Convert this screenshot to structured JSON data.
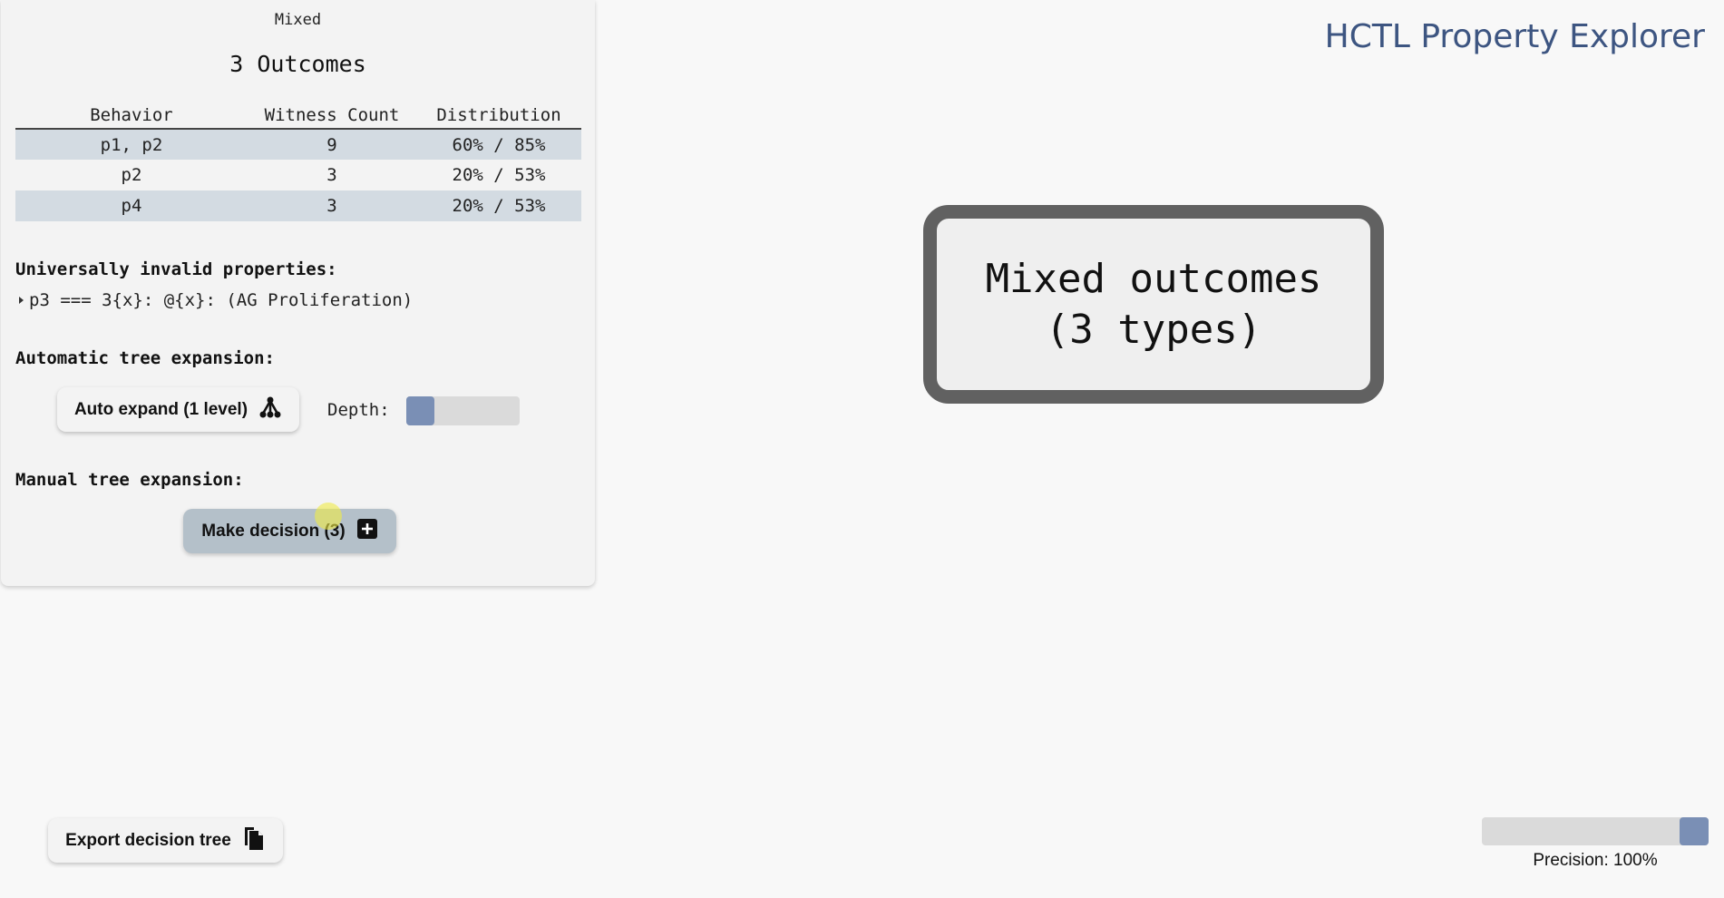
{
  "app": {
    "title": "HCTL Property Explorer"
  },
  "panel": {
    "type_label": "Mixed",
    "title": "3 Outcomes",
    "table": {
      "headers": [
        "Behavior",
        "Witness Count",
        "Distribution"
      ],
      "rows": [
        {
          "behavior": "p1, p2",
          "witness_count": "9",
          "distribution": "60% / 85%"
        },
        {
          "behavior": "p2",
          "witness_count": "3",
          "distribution": "20% / 53%"
        },
        {
          "behavior": "p4",
          "witness_count": "3",
          "distribution": "20% / 53%"
        }
      ]
    },
    "invalid_label": "Universally invalid properties:",
    "invalid_items": [
      "p3 === 3{x}: @{x}: (AG Proliferation)"
    ],
    "auto_label": "Automatic tree expansion:",
    "auto_button": {
      "label": "Auto expand (1 level)",
      "icon": "tree-expand-icon"
    },
    "depth_label": "Depth:",
    "depth_level": 1,
    "manual_label": "Manual tree expansion:",
    "decision_button": {
      "label": "Make decision (3)",
      "icon": "plus-square-icon"
    }
  },
  "node": {
    "line1": "Mixed outcomes",
    "line2": "(3 types)"
  },
  "export_button": {
    "label": "Export decision tree",
    "icon": "copy-document-icon"
  },
  "precision": {
    "label": "Precision: 100%",
    "value": 1.0
  },
  "colors": {
    "accent": "#7a8fb5",
    "title": "#3d5581",
    "row_highlight": "#d3dbe2",
    "node_border": "#616161"
  }
}
